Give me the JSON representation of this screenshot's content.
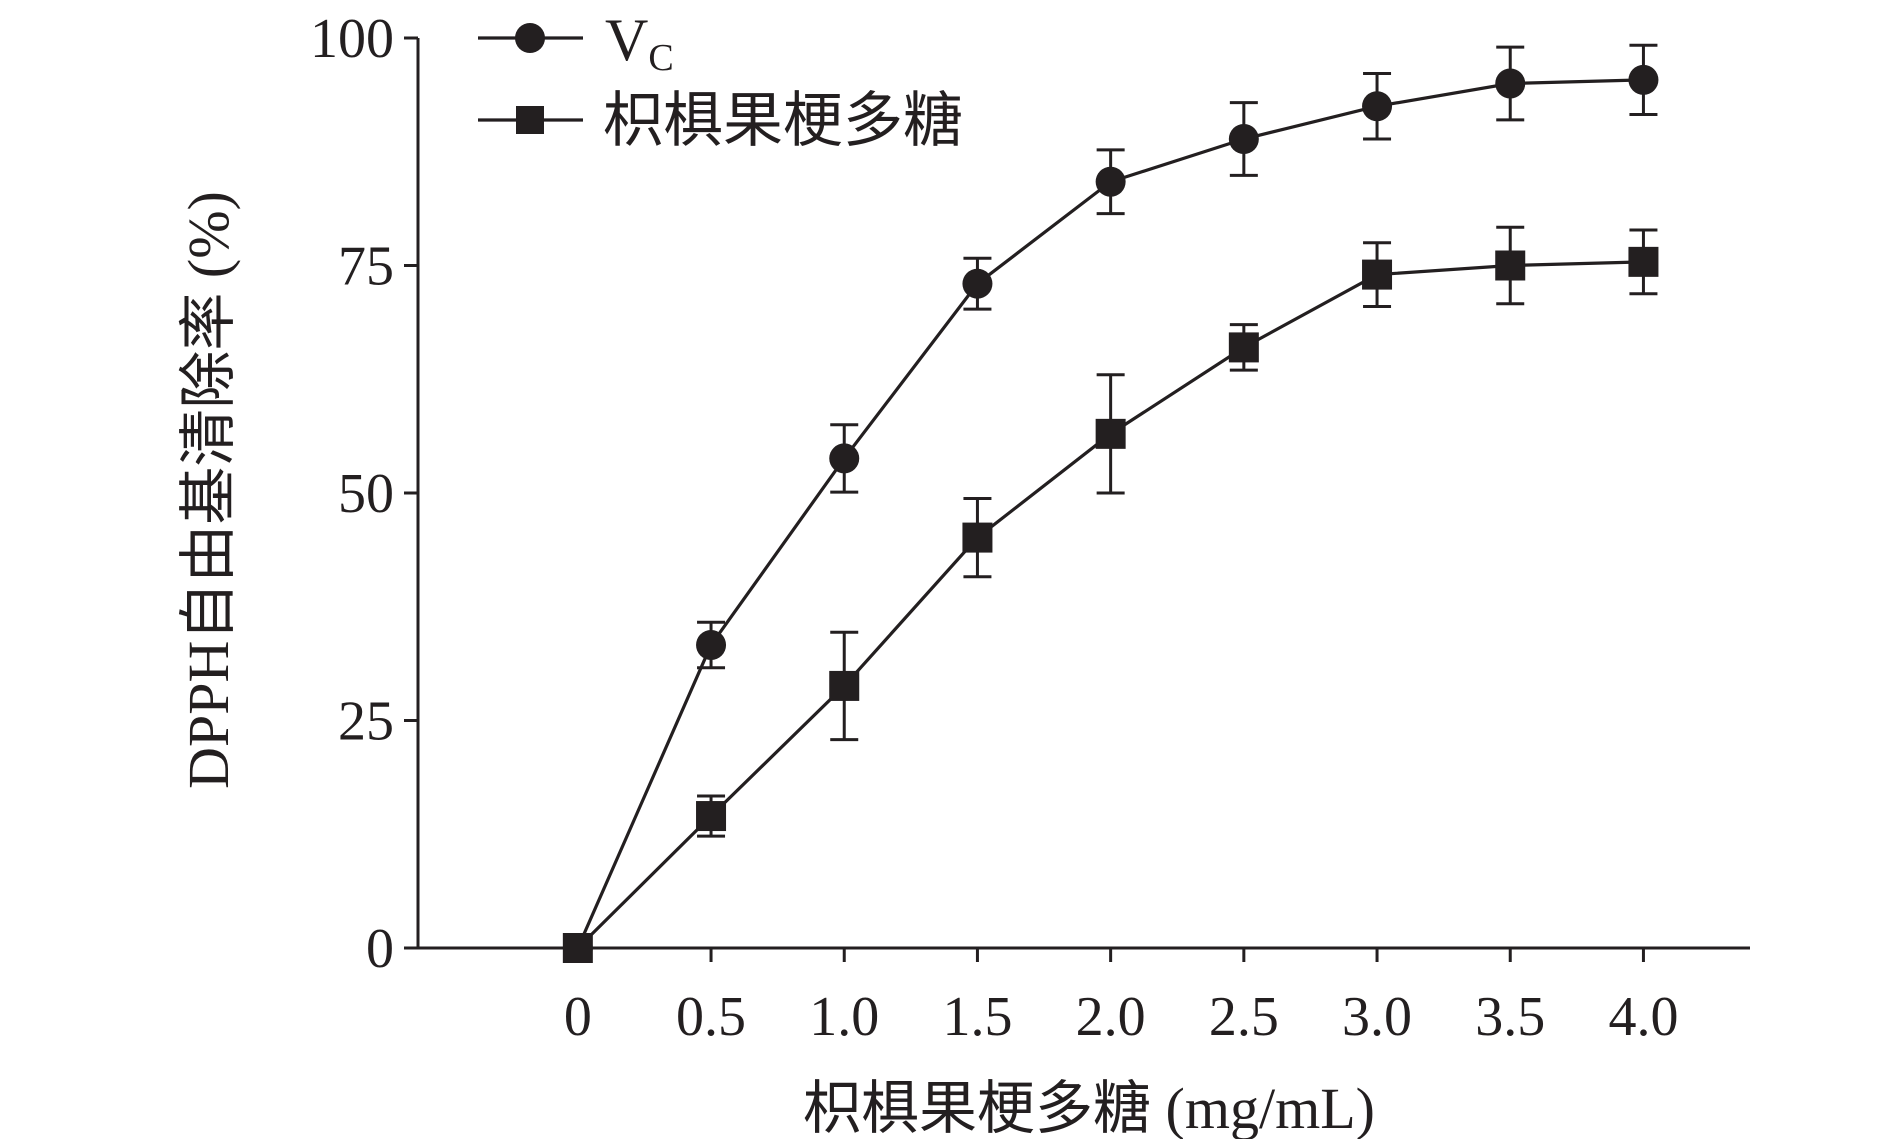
{
  "chart_data": {
    "type": "line",
    "title": "",
    "xlabel": "枳椇果梗多糖 (mg/mL)",
    "ylabel": "DPPH自由基清除率 (%)",
    "x": [
      0,
      0.5,
      1.0,
      1.5,
      2.0,
      2.5,
      3.0,
      3.5,
      4.0
    ],
    "x_tick_labels": [
      "0",
      "0.5",
      "1.0",
      "1.5",
      "2.0",
      "2.5",
      "3.0",
      "3.5",
      "4.0"
    ],
    "y_ticks": [
      0,
      25,
      50,
      75,
      100
    ],
    "y_tick_labels": [
      "0",
      "25",
      "50",
      "75",
      "100"
    ],
    "xlim": [
      -0.6,
      4.4
    ],
    "ylim": [
      0,
      100
    ],
    "grid": false,
    "legend_position": "top-left",
    "series": [
      {
        "name": "V",
        "name_subscript": "C",
        "marker": "circle",
        "color": "#231f20",
        "values": [
          0,
          33.3,
          53.8,
          73.0,
          84.2,
          88.9,
          92.5,
          95.0,
          95.4
        ],
        "errors": [
          0,
          2.5,
          3.7,
          2.8,
          3.5,
          4.0,
          3.6,
          4.0,
          3.8
        ]
      },
      {
        "name": "枳椇果梗多糖",
        "marker": "square",
        "color": "#231f20",
        "values": [
          0,
          14.5,
          28.8,
          45.1,
          56.5,
          66.0,
          74.0,
          75.0,
          75.4
        ],
        "errors": [
          0,
          2.2,
          5.9,
          4.3,
          6.5,
          2.5,
          3.5,
          4.2,
          3.5
        ]
      }
    ]
  }
}
